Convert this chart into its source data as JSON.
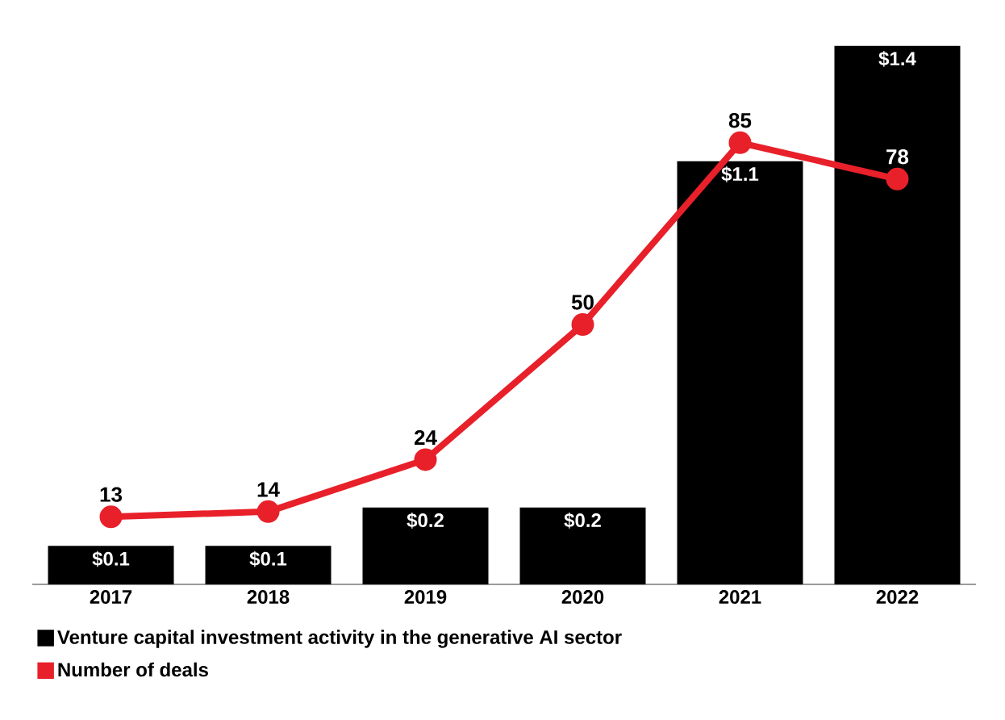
{
  "chart_data": {
    "type": "bar",
    "categories": [
      "2017",
      "2018",
      "2019",
      "2020",
      "2021",
      "2022"
    ],
    "series": [
      {
        "name": "Venture capital investment activity in the generative AI sector",
        "color": "#000000",
        "values": [
          0.1,
          0.1,
          0.2,
          0.2,
          1.1,
          1.4
        ],
        "value_labels": [
          "$0.1",
          "$0.1",
          "$0.2",
          "$0.2",
          "$1.1",
          "$1.4"
        ]
      },
      {
        "name": "Number of deals",
        "type": "line",
        "axis": "y2",
        "color": "#e8202a",
        "values": [
          13,
          14,
          24,
          50,
          85,
          78
        ],
        "value_labels": [
          "13",
          "14",
          "24",
          "50",
          "85",
          "78"
        ]
      }
    ],
    "marker": "circle",
    "legend": "bottom"
  }
}
